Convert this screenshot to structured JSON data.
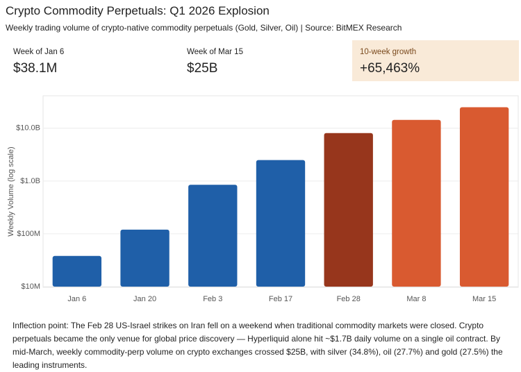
{
  "header": {
    "title": "Crypto Commodity Perpetuals: Q1 2026 Explosion",
    "subtitle": "Weekly trading volume of crypto-native commodity perpetuals (Gold, Silver, Oil) | Source: BitMEX Research"
  },
  "stats": [
    {
      "label": "Week of Jan 6",
      "value": "$38.1M"
    },
    {
      "label": "Week of Mar 15",
      "value": "$25B"
    },
    {
      "label": "10-week growth",
      "value": "+65,463%"
    }
  ],
  "chart_data": {
    "type": "bar",
    "y_label": "Weekly Volume (log scale)",
    "log_scale": true,
    "grid": true,
    "categories": [
      "Jan 6",
      "Jan 20",
      "Feb 3",
      "Feb 17",
      "Feb 28",
      "Mar 8",
      "Mar 15"
    ],
    "values": [
      38100000,
      120000000,
      850000000,
      2500000000,
      8100000000,
      14400000000,
      25000000000
    ],
    "colors": [
      "#1f5fa8",
      "#1f5fa8",
      "#1f5fa8",
      "#1f5fa8",
      "#97361c",
      "#d95a30",
      "#d95a30"
    ],
    "ylim": [
      10000000,
      40000000000
    ],
    "yticks": [
      {
        "value": 10000000,
        "label": "$10M"
      },
      {
        "value": 100000000,
        "label": "$100M"
      },
      {
        "value": 1000000000,
        "label": "$1.0B"
      },
      {
        "value": 10000000000,
        "label": "$10.0B"
      }
    ]
  },
  "note": "Inflection point: The Feb 28 US-Israel strikes on Iran fell on a weekend when traditional commodity markets were closed. Crypto perpetuals became the only venue for global price discovery — Hyperliquid alone hit ~$1.7B daily volume on a single oil contract. By mid-March, weekly commodity-perp volume on crypto exchanges crossed $25B, with silver (34.8%), oil (27.7%) and gold (27.5%) the leading instruments."
}
